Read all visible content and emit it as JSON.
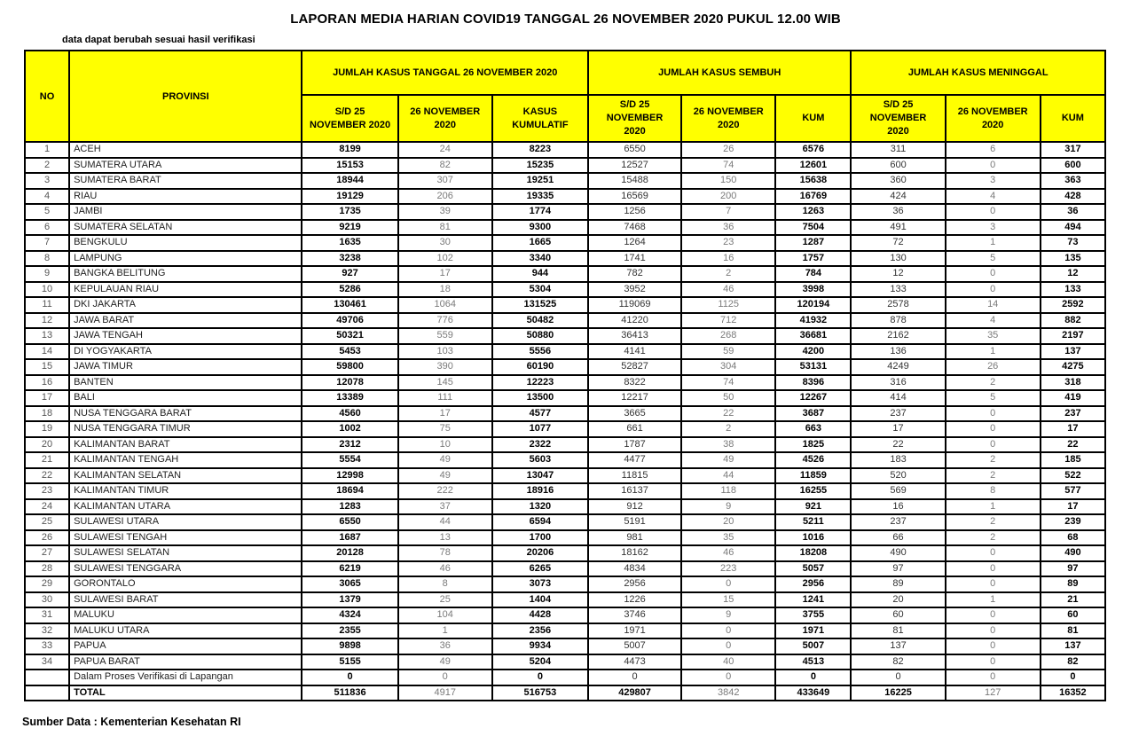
{
  "title": "LAPORAN MEDIA HARIAN COVID19 TANGGAL 26 NOVEMBER 2020 PUKUL 12.00 WIB",
  "note": "data dapat berubah sesuai hasil verifikasi",
  "footer": "Sumber Data : Kementerian Kesehatan RI",
  "colors": {
    "header_bg": "#FFFF00",
    "border": "#000000",
    "bold_text": "#000000",
    "regular_text": "#333333",
    "muted_text": "#7A7A7A"
  },
  "table": {
    "columns": {
      "no": "NO",
      "provinsi": "PROVINSI",
      "groups": [
        {
          "label": "JUMLAH KASUS TANGGAL 26 NOVEMBER 2020",
          "cols": [
            "S/D 25\nNOVEMBER 2020",
            "26 NOVEMBER\n2020",
            "KASUS\nKUMULATIF"
          ]
        },
        {
          "label": "JUMLAH KASUS SEMBUH",
          "cols": [
            "S/D 25\nNOVEMBER\n2020",
            "26 NOVEMBER\n2020",
            "KUM"
          ]
        },
        {
          "label": "JUMLAH KASUS MENINGGAL",
          "cols": [
            "S/D 25\nNOVEMBER\n2020",
            "26 NOVEMBER\n2020",
            "KUM"
          ]
        }
      ]
    },
    "rows": [
      {
        "no": "1",
        "provinsi": "ACEH",
        "values": [
          8199,
          24,
          8223,
          6550,
          26,
          6576,
          311,
          6,
          317
        ]
      },
      {
        "no": "2",
        "provinsi": "SUMATERA UTARA",
        "values": [
          15153,
          82,
          15235,
          12527,
          74,
          12601,
          600,
          0,
          600
        ]
      },
      {
        "no": "3",
        "provinsi": "SUMATERA BARAT",
        "values": [
          18944,
          307,
          19251,
          15488,
          150,
          15638,
          360,
          3,
          363
        ]
      },
      {
        "no": "4",
        "provinsi": "RIAU",
        "values": [
          19129,
          206,
          19335,
          16569,
          200,
          16769,
          424,
          4,
          428
        ]
      },
      {
        "no": "5",
        "provinsi": "JAMBI",
        "values": [
          1735,
          39,
          1774,
          1256,
          7,
          1263,
          36,
          0,
          36
        ]
      },
      {
        "no": "6",
        "provinsi": "SUMATERA SELATAN",
        "values": [
          9219,
          81,
          9300,
          7468,
          36,
          7504,
          491,
          3,
          494
        ]
      },
      {
        "no": "7",
        "provinsi": "BENGKULU",
        "values": [
          1635,
          30,
          1665,
          1264,
          23,
          1287,
          72,
          1,
          73
        ]
      },
      {
        "no": "8",
        "provinsi": "LAMPUNG",
        "values": [
          3238,
          102,
          3340,
          1741,
          16,
          1757,
          130,
          5,
          135
        ]
      },
      {
        "no": "9",
        "provinsi": "BANGKA BELITUNG",
        "values": [
          927,
          17,
          944,
          782,
          2,
          784,
          12,
          0,
          12
        ]
      },
      {
        "no": "10",
        "provinsi": "KEPULAUAN RIAU",
        "values": [
          5286,
          18,
          5304,
          3952,
          46,
          3998,
          133,
          0,
          133
        ]
      },
      {
        "no": "11",
        "provinsi": "DKI JAKARTA",
        "values": [
          130461,
          1064,
          131525,
          119069,
          1125,
          120194,
          2578,
          14,
          2592
        ]
      },
      {
        "no": "12",
        "provinsi": "JAWA BARAT",
        "values": [
          49706,
          776,
          50482,
          41220,
          712,
          41932,
          878,
          4,
          882
        ]
      },
      {
        "no": "13",
        "provinsi": "JAWA TENGAH",
        "values": [
          50321,
          559,
          50880,
          36413,
          268,
          36681,
          2162,
          35,
          2197
        ]
      },
      {
        "no": "14",
        "provinsi": "DI YOGYAKARTA",
        "values": [
          5453,
          103,
          5556,
          4141,
          59,
          4200,
          136,
          1,
          137
        ]
      },
      {
        "no": "15",
        "provinsi": "JAWA TIMUR",
        "values": [
          59800,
          390,
          60190,
          52827,
          304,
          53131,
          4249,
          26,
          4275
        ]
      },
      {
        "no": "16",
        "provinsi": "BANTEN",
        "values": [
          12078,
          145,
          12223,
          8322,
          74,
          8396,
          316,
          2,
          318
        ]
      },
      {
        "no": "17",
        "provinsi": "BALI",
        "values": [
          13389,
          111,
          13500,
          12217,
          50,
          12267,
          414,
          5,
          419
        ]
      },
      {
        "no": "18",
        "provinsi": "NUSA TENGGARA BARAT",
        "values": [
          4560,
          17,
          4577,
          3665,
          22,
          3687,
          237,
          0,
          237
        ]
      },
      {
        "no": "19",
        "provinsi": "NUSA TENGGARA TIMUR",
        "values": [
          1002,
          75,
          1077,
          661,
          2,
          663,
          17,
          0,
          17
        ]
      },
      {
        "no": "20",
        "provinsi": "KALIMANTAN BARAT",
        "values": [
          2312,
          10,
          2322,
          1787,
          38,
          1825,
          22,
          0,
          22
        ]
      },
      {
        "no": "21",
        "provinsi": "KALIMANTAN TENGAH",
        "values": [
          5554,
          49,
          5603,
          4477,
          49,
          4526,
          183,
          2,
          185
        ]
      },
      {
        "no": "22",
        "provinsi": "KALIMANTAN SELATAN",
        "values": [
          12998,
          49,
          13047,
          11815,
          44,
          11859,
          520,
          2,
          522
        ]
      },
      {
        "no": "23",
        "provinsi": "KALIMANTAN TIMUR",
        "values": [
          18694,
          222,
          18916,
          16137,
          118,
          16255,
          569,
          8,
          577
        ]
      },
      {
        "no": "24",
        "provinsi": "KALIMANTAN UTARA",
        "values": [
          1283,
          37,
          1320,
          912,
          9,
          921,
          16,
          1,
          17
        ]
      },
      {
        "no": "25",
        "provinsi": "SULAWESI UTARA",
        "values": [
          6550,
          44,
          6594,
          5191,
          20,
          5211,
          237,
          2,
          239
        ]
      },
      {
        "no": "26",
        "provinsi": "SULAWESI TENGAH",
        "values": [
          1687,
          13,
          1700,
          981,
          35,
          1016,
          66,
          2,
          68
        ]
      },
      {
        "no": "27",
        "provinsi": "SULAWESI SELATAN",
        "values": [
          20128,
          78,
          20206,
          18162,
          46,
          18208,
          490,
          0,
          490
        ]
      },
      {
        "no": "28",
        "provinsi": "SULAWESI TENGGARA",
        "values": [
          6219,
          46,
          6265,
          4834,
          223,
          5057,
          97,
          0,
          97
        ]
      },
      {
        "no": "29",
        "provinsi": "GORONTALO",
        "values": [
          3065,
          8,
          3073,
          2956,
          0,
          2956,
          89,
          0,
          89
        ]
      },
      {
        "no": "30",
        "provinsi": "SULAWESI BARAT",
        "values": [
          1379,
          25,
          1404,
          1226,
          15,
          1241,
          20,
          1,
          21
        ]
      },
      {
        "no": "31",
        "provinsi": "MALUKU",
        "values": [
          4324,
          104,
          4428,
          3746,
          9,
          3755,
          60,
          0,
          60
        ]
      },
      {
        "no": "32",
        "provinsi": "MALUKU UTARA",
        "values": [
          2355,
          1,
          2356,
          1971,
          0,
          1971,
          81,
          0,
          81
        ]
      },
      {
        "no": "33",
        "provinsi": "PAPUA",
        "values": [
          9898,
          36,
          9934,
          5007,
          0,
          5007,
          137,
          0,
          137
        ]
      },
      {
        "no": "34",
        "provinsi": "PAPUA BARAT",
        "values": [
          5155,
          49,
          5204,
          4473,
          40,
          4513,
          82,
          0,
          82
        ]
      }
    ],
    "verification_row": {
      "label": "Dalam Proses Verifikasi di Lapangan",
      "values": [
        0,
        0,
        0,
        0,
        0,
        0,
        0,
        0,
        0
      ]
    },
    "total_row": {
      "label": "TOTAL",
      "values": [
        511836,
        4917,
        516753,
        429807,
        3842,
        433649,
        16225,
        127,
        16352
      ]
    }
  }
}
